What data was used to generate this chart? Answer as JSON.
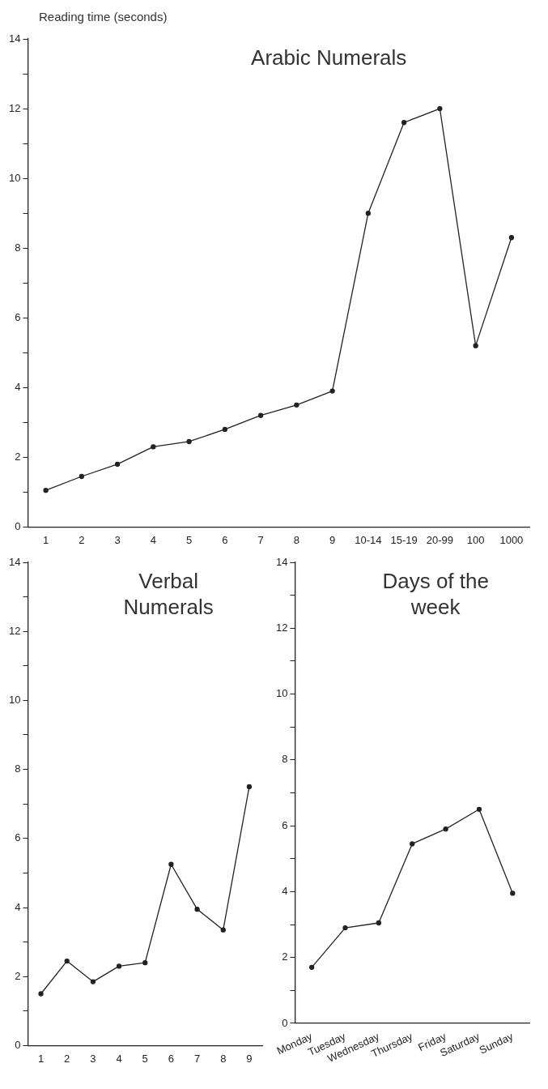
{
  "chart_data": [
    {
      "type": "line",
      "title": "Arabic Numerals",
      "ylabel": "Reading time (seconds)",
      "categories": [
        "1",
        "2",
        "3",
        "4",
        "5",
        "6",
        "7",
        "8",
        "9",
        "10-14",
        "15-19",
        "20-99",
        "100",
        "1000"
      ],
      "series": [
        {
          "color": "#222222",
          "values": [
            1.05,
            1.45,
            1.8,
            2.3,
            2.45,
            2.8,
            3.2,
            3.5,
            3.9,
            9.0,
            11.6,
            12.0,
            5.2,
            8.3
          ]
        }
      ],
      "ylim": [
        0,
        14
      ],
      "yticks": [
        0,
        {
          "value": 1,
          "label": null
        },
        2,
        {
          "value": 3,
          "label": null
        },
        4,
        {
          "value": 5,
          "label": null
        },
        6,
        {
          "value": 7,
          "label": null
        },
        8,
        {
          "value": 9,
          "label": null
        },
        10,
        {
          "value": 11,
          "label": null
        },
        12,
        {
          "value": 13,
          "label": null
        },
        14
      ],
      "grid": false,
      "legend": false,
      "marker": "circle",
      "line_style": "solid"
    },
    {
      "type": "line",
      "title": "Verbal Numerals",
      "categories": [
        "1",
        "2",
        "3",
        "4",
        "5",
        "6",
        "7",
        "8",
        "9"
      ],
      "series": [
        {
          "color": "#222222",
          "values": [
            1.5,
            2.45,
            1.85,
            2.3,
            2.4,
            5.25,
            3.95,
            3.35,
            7.5
          ]
        }
      ],
      "ylim": [
        0,
        14
      ],
      "yticks": [
        0,
        {
          "value": 1,
          "label": null
        },
        2,
        {
          "value": 3,
          "label": null
        },
        4,
        {
          "value": 5,
          "label": null
        },
        6,
        {
          "value": 7,
          "label": null
        },
        8,
        {
          "value": 9,
          "label": null
        },
        10,
        {
          "value": 11,
          "label": null
        },
        12,
        {
          "value": 13,
          "label": null
        },
        14
      ],
      "grid": false,
      "legend": false,
      "marker": "circle",
      "line_style": "solid"
    },
    {
      "type": "line",
      "title": "Days of the week",
      "categories": [
        "Monday",
        "Tuesday",
        "Wednesday",
        "Thursday",
        "Friday",
        "Saturday",
        "Sunday"
      ],
      "series": [
        {
          "color": "#222222",
          "values": [
            1.7,
            2.9,
            3.05,
            5.45,
            5.9,
            6.5,
            3.95
          ]
        }
      ],
      "ylim": [
        0,
        14
      ],
      "yticks": [
        0,
        {
          "value": 1,
          "label": null
        },
        2,
        {
          "value": 3,
          "label": null
        },
        4,
        {
          "value": 5,
          "label": null
        },
        6,
        {
          "value": 7,
          "label": null
        },
        8,
        {
          "value": 9,
          "label": null
        },
        10,
        {
          "value": 11,
          "label": null
        },
        12,
        {
          "value": 13,
          "label": null
        },
        14
      ],
      "grid": false,
      "legend": false,
      "marker": "circle",
      "line_style": "solid"
    }
  ]
}
